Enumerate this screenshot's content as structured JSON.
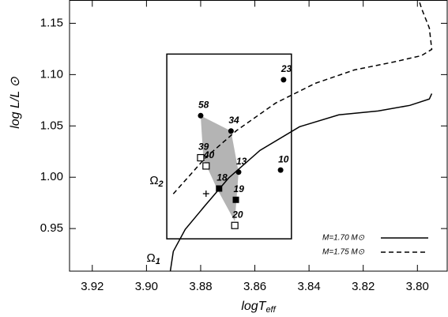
{
  "chart_data": {
    "type": "hr-diagram",
    "xlabel": {
      "main": "logT",
      "sub": "eff"
    },
    "ylabel": "log L/L ⊙",
    "xlim": [
      3.9284,
      3.789
    ],
    "ylim": [
      0.9085,
      1.1723
    ],
    "xticks": [
      3.92,
      {
        "value": 3.9,
        "label": "3.90"
      },
      3.88,
      3.86,
      3.84,
      3.82,
      {
        "value": 3.8,
        "label": "3.80"
      }
    ],
    "yticks": [
      {
        "value": 0.95,
        "label": "0.95"
      },
      {
        "value": 1.0,
        "label": "1.00"
      },
      1.05,
      {
        "value": 1.1,
        "label": "1.10"
      },
      1.15
    ],
    "series": [
      {
        "name": "M=1.70 M⊙",
        "style": "solid",
        "color": "#000000",
        "label": {
          "main": "Ω",
          "sub": "1"
        },
        "x": [
          3.8912,
          3.8901,
          3.8857,
          3.8784,
          3.8697,
          3.8581,
          3.8435,
          3.829,
          3.8145,
          3.8028,
          3.7956,
          3.7947
        ],
        "y": [
          0.9085,
          0.9277,
          0.9492,
          0.9723,
          0.9992,
          1.0262,
          1.0492,
          1.0608,
          1.0646,
          1.07,
          1.0762,
          1.0815
        ]
      },
      {
        "name": "M=1.75 M⊙",
        "style": "dashed",
        "color": "#000000",
        "label": {
          "main": "Ω",
          "sub": "2"
        },
        "x": [
          3.8901,
          3.8784,
          3.8668,
          3.8523,
          3.8377,
          3.8232,
          3.8087,
          3.7985,
          3.7947,
          3.7956,
          3.7985,
          3.7994
        ],
        "y": [
          0.9838,
          1.0185,
          1.0454,
          1.0723,
          1.0915,
          1.1046,
          1.1123,
          1.1185,
          1.1246,
          1.1454,
          1.1646,
          1.1723
        ]
      }
    ],
    "box": {
      "x": [
        3.8925,
        3.8465
      ],
      "y": [
        0.94,
        1.12
      ]
    },
    "region": {
      "color": "#b4b4b4",
      "x": [
        3.88,
        3.8688,
        3.866,
        3.8674,
        3.874,
        3.879
      ],
      "y": [
        1.06,
        1.045,
        1.005,
        0.957,
        0.989,
        1.018
      ]
    },
    "points": [
      {
        "label": "23",
        "marker": "filled-circle",
        "x": 3.8494,
        "y": 1.095
      },
      {
        "label": "58",
        "marker": "filled-circle",
        "x": 3.88,
        "y": 1.06
      },
      {
        "label": "34",
        "marker": "filled-circle",
        "x": 3.8688,
        "y": 1.045
      },
      {
        "label": "13",
        "marker": "filled-circle",
        "x": 3.866,
        "y": 1.005
      },
      {
        "label": "10",
        "marker": "filled-circle",
        "x": 3.8505,
        "y": 1.007
      },
      {
        "label": "18",
        "marker": "filled-square",
        "x": 3.8732,
        "y": 0.989
      },
      {
        "label": "19",
        "marker": "filled-square",
        "x": 3.867,
        "y": 0.978
      },
      {
        "label": "39",
        "marker": "open-square",
        "x": 3.88,
        "y": 1.019
      },
      {
        "label": "40",
        "marker": "open-square",
        "x": 3.878,
        "y": 1.011
      },
      {
        "label": "20",
        "marker": "open-square",
        "x": 3.8674,
        "y": 0.953
      },
      {
        "marker": "plus",
        "x": 3.878,
        "y": 0.984
      }
    ]
  }
}
